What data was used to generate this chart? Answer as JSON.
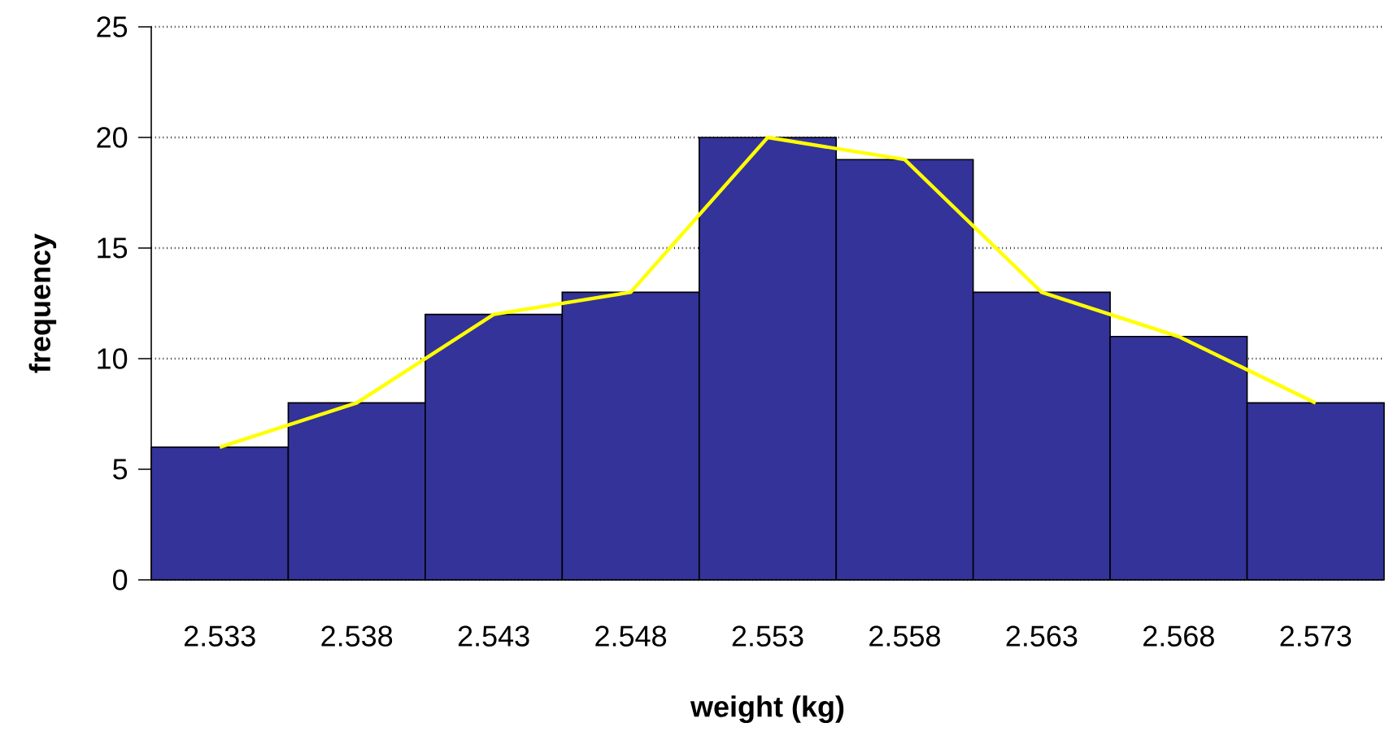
{
  "chart_data": {
    "type": "bar",
    "xlabel": "weight (kg)",
    "ylabel": "frequency",
    "categories": [
      "2.533",
      "2.538",
      "2.543",
      "2.548",
      "2.553",
      "2.558",
      "2.563",
      "2.568",
      "2.573"
    ],
    "series": [
      {
        "color": "#333399",
        "values": [
          6,
          8,
          12,
          13,
          20,
          19,
          13,
          11,
          8
        ]
      },
      {
        "type": "line",
        "color": "#ffff00",
        "values": [
          6,
          8,
          12,
          13,
          20,
          19,
          13,
          11,
          8
        ]
      }
    ],
    "ylim": [
      0,
      25
    ],
    "yticks": [
      0,
      5,
      10,
      15,
      20,
      25
    ],
    "grid": "y"
  }
}
